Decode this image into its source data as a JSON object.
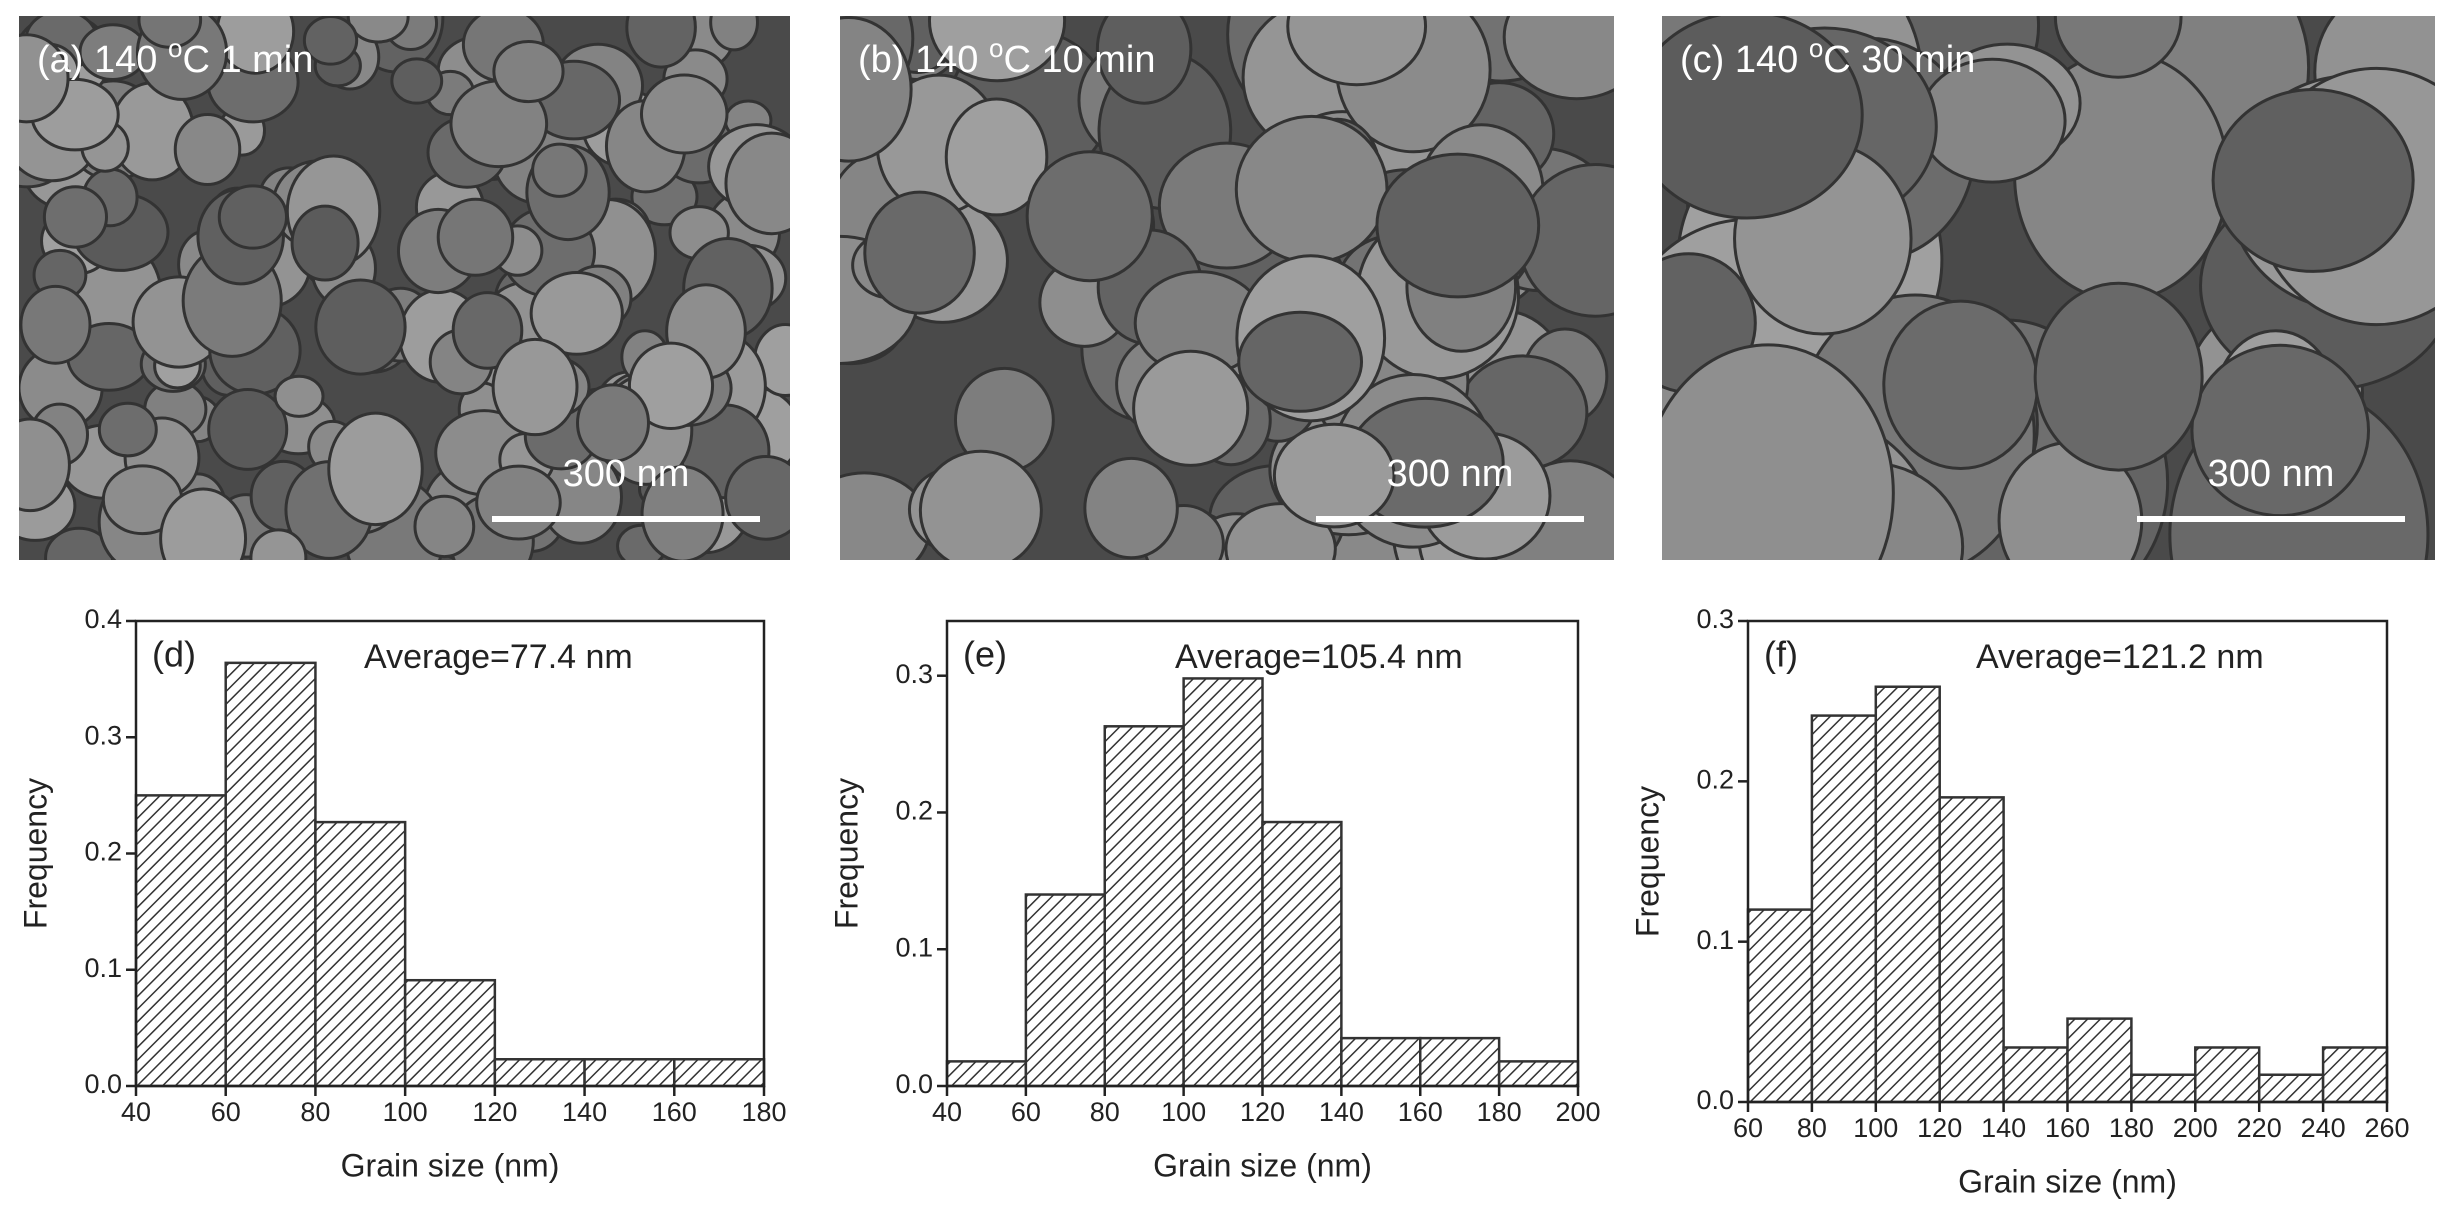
{
  "images": [
    {
      "label": "(a) 140 ",
      "sup": "o",
      "suffix": "C 1 min",
      "scale_bar": "300 nm"
    },
    {
      "label": "(b) 140 ",
      "sup": "o",
      "suffix": "C 10 min",
      "scale_bar": "300 nm"
    },
    {
      "label": "(c) 140 ",
      "sup": "o",
      "suffix": "C 30 min",
      "scale_bar": "300 nm"
    }
  ],
  "chart_data": [
    {
      "type": "histogram",
      "panel": "(d)",
      "annotation": "Average=77.4 nm",
      "xlabel": "Grain size (nm)",
      "ylabel": "Frequency",
      "bins": [
        40,
        60,
        80,
        100,
        120,
        140,
        160,
        180
      ],
      "values": [
        0.25,
        0.364,
        0.227,
        0.091,
        0.023,
        0.023,
        0.023
      ],
      "color": "#333333",
      "xlim": [
        40,
        180
      ],
      "ylim": [
        0,
        0.4
      ],
      "xticks": [
        40,
        60,
        80,
        100,
        120,
        140,
        160,
        180
      ],
      "yticks": [
        {
          "value": 0,
          "label": "0.0"
        },
        0.1,
        0.2,
        0.3,
        0.4
      ]
    },
    {
      "type": "histogram",
      "panel": "(e)",
      "annotation": "Average=105.4 nm",
      "xlabel": "Grain size (nm)",
      "ylabel": "Frequency",
      "bins": [
        40,
        60,
        80,
        100,
        120,
        140,
        160,
        180,
        200
      ],
      "values": [
        0.018,
        0.14,
        0.263,
        0.298,
        0.193,
        0.035,
        0.035,
        0.018
      ],
      "color": "#333333",
      "xlim": [
        40,
        200
      ],
      "ylim": [
        0,
        0.34
      ],
      "xticks": [
        40,
        60,
        80,
        100,
        120,
        140,
        160,
        180,
        200
      ],
      "yticks": [
        {
          "value": 0,
          "label": "0.0"
        },
        0.1,
        0.2,
        0.3
      ]
    },
    {
      "type": "histogram",
      "panel": "(f)",
      "annotation": "Average=121.2 nm",
      "xlabel": "Grain size (nm)",
      "ylabel": "Frequency",
      "bins": [
        60,
        80,
        100,
        120,
        140,
        160,
        180,
        200,
        220,
        240,
        260
      ],
      "values": [
        0.12,
        0.241,
        0.259,
        0.19,
        0.034,
        0.052,
        0.017,
        0.034,
        0.017,
        0.034
      ],
      "color": "#333333",
      "xlim": [
        60,
        260
      ],
      "ylim": [
        0,
        0.3
      ],
      "xticks": [
        60,
        80,
        100,
        120,
        140,
        160,
        180,
        200,
        220,
        240,
        260
      ],
      "yticks": [
        {
          "value": 0,
          "label": "0.0"
        },
        0.1,
        0.2,
        0.3
      ]
    }
  ]
}
